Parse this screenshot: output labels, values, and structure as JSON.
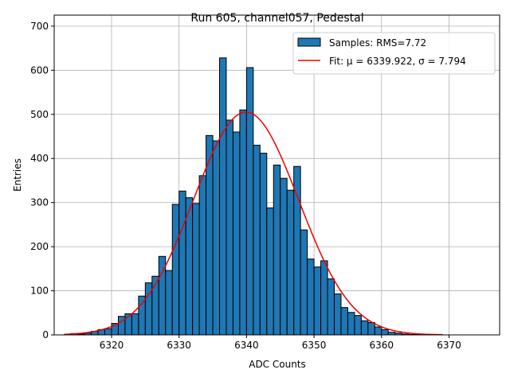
{
  "chart_data": {
    "type": "bar",
    "title": "Run 605, channel057, Pedestal",
    "xlabel": "ADC Counts",
    "ylabel": "Entries",
    "xlim": [
      6311.5,
      6377.5
    ],
    "ylim": [
      0,
      725
    ],
    "xticks": [
      6320,
      6330,
      6340,
      6350,
      6360,
      6370
    ],
    "yticks": [
      0,
      100,
      200,
      300,
      400,
      500,
      600,
      700
    ],
    "grid": true,
    "legend_position": "top-right",
    "bin_width": 1,
    "bin_start": 6313,
    "bin_counts": [
      1,
      3,
      2,
      4,
      8,
      12,
      14,
      26,
      42,
      48,
      48,
      88,
      118,
      133,
      178,
      146,
      296,
      326,
      311,
      298,
      361,
      452,
      440,
      628,
      487,
      460,
      510,
      606,
      430,
      412,
      288,
      385,
      355,
      328,
      382,
      238,
      172,
      154,
      168,
      127,
      93,
      62,
      51,
      44,
      32,
      28,
      18,
      12,
      6,
      4,
      2,
      1,
      1,
      1,
      1,
      1
    ],
    "series": [
      {
        "name": "Samples: RMS=7.72",
        "kind": "histogram",
        "color": "#1f77b4"
      },
      {
        "name": "Fit: μ = 6339.922, σ = 7.794",
        "kind": "gaussian-fit",
        "color": "#ee0000",
        "mu": 6339.922,
        "sigma": 7.794,
        "amplitude": 505,
        "x_range": [
          6313,
          6369
        ]
      }
    ]
  }
}
